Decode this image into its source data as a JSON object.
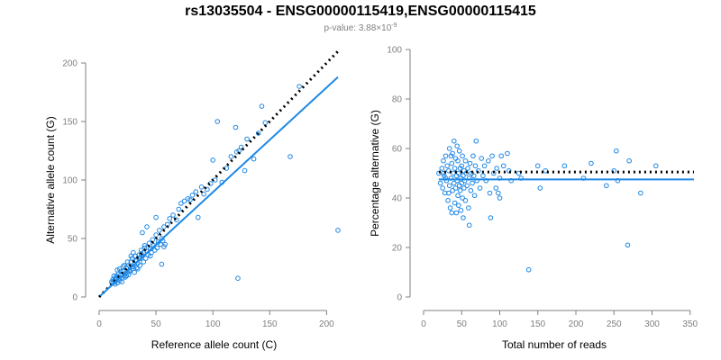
{
  "title": "rs13035504 - ENSG00000115419,ENSG00000115415",
  "subtitle_prefix": "p-value: 3.88×10",
  "subtitle_exp": "-9",
  "colors": {
    "points": "#1e88e5",
    "fit": "#1e88e5",
    "reference": "#000000",
    "axis": "#808080"
  },
  "chart_data": [
    {
      "type": "scatter",
      "title": "",
      "xlabel": "Reference allele count (C)",
      "ylabel": "Alternative allele count (G)",
      "xlim": [
        0,
        210
      ],
      "ylim": [
        0,
        200
      ],
      "xticks": [
        0,
        50,
        100,
        150,
        200
      ],
      "yticks": [
        0,
        50,
        100,
        150,
        200
      ],
      "fit_line": {
        "style": "solid",
        "color": "#1e88e5",
        "from": [
          1,
          1
        ],
        "to": [
          210,
          188
        ]
      },
      "reference_line": {
        "style": "dotted",
        "color": "#000000",
        "from": [
          0,
          0
        ],
        "to": [
          210,
          210
        ]
      },
      "points": [
        [
          12,
          12
        ],
        [
          13,
          14
        ],
        [
          14,
          13
        ],
        [
          15,
          15
        ],
        [
          16,
          12
        ],
        [
          17,
          17
        ],
        [
          18,
          14
        ],
        [
          15,
          18
        ],
        [
          14,
          11
        ],
        [
          19,
          19
        ],
        [
          20,
          16
        ],
        [
          21,
          22
        ],
        [
          22,
          18
        ],
        [
          23,
          20
        ],
        [
          18,
          24
        ],
        [
          24,
          25
        ],
        [
          25,
          21
        ],
        [
          26,
          27
        ],
        [
          27,
          23
        ],
        [
          28,
          30
        ],
        [
          30,
          26
        ],
        [
          29,
          33
        ],
        [
          31,
          28
        ],
        [
          32,
          35
        ],
        [
          33,
          31
        ],
        [
          34,
          29
        ],
        [
          35,
          36
        ],
        [
          36,
          33
        ],
        [
          37,
          40
        ],
        [
          38,
          35
        ],
        [
          39,
          38
        ],
        [
          40,
          42
        ],
        [
          42,
          39
        ],
        [
          44,
          46
        ],
        [
          45,
          41
        ],
        [
          47,
          49
        ],
        [
          48,
          44
        ],
        [
          50,
          53
        ],
        [
          52,
          47
        ],
        [
          53,
          57
        ],
        [
          55,
          50
        ],
        [
          57,
          60
        ],
        [
          60,
          62
        ],
        [
          62,
          67
        ],
        [
          65,
          70
        ],
        [
          68,
          66
        ],
        [
          70,
          75
        ],
        [
          72,
          80
        ],
        [
          75,
          82
        ],
        [
          78,
          84
        ],
        [
          80,
          83
        ],
        [
          82,
          87
        ],
        [
          85,
          90
        ],
        [
          87,
          68
        ],
        [
          90,
          94
        ],
        [
          92,
          88
        ],
        [
          95,
          92
        ],
        [
          98,
          97
        ],
        [
          100,
          117
        ],
        [
          102,
          100
        ],
        [
          104,
          150
        ],
        [
          108,
          98
        ],
        [
          112,
          110
        ],
        [
          116,
          120
        ],
        [
          120,
          145
        ],
        [
          121,
          124
        ],
        [
          123,
          125
        ],
        [
          125,
          128
        ],
        [
          128,
          108
        ],
        [
          130,
          135
        ],
        [
          136,
          118
        ],
        [
          140,
          140
        ],
        [
          143,
          163
        ],
        [
          146,
          149
        ],
        [
          168,
          120
        ],
        [
          176,
          180
        ],
        [
          210,
          57
        ],
        [
          122,
          16
        ],
        [
          55,
          28
        ],
        [
          57,
          43
        ],
        [
          58,
          45
        ],
        [
          50,
          68
        ],
        [
          42,
          60
        ],
        [
          38,
          55
        ],
        [
          45,
          35
        ],
        [
          33,
          25
        ],
        [
          27,
          22
        ],
        [
          22,
          27
        ],
        [
          19,
          22
        ],
        [
          17,
          20
        ],
        [
          16,
          23
        ],
        [
          14,
          16
        ],
        [
          13,
          18
        ],
        [
          12,
          15
        ],
        [
          11,
          13
        ],
        [
          20,
          13
        ],
        [
          23,
          17
        ],
        [
          26,
          19
        ],
        [
          29,
          24
        ],
        [
          31,
          21
        ],
        [
          34,
          24
        ],
        [
          36,
          27
        ],
        [
          39,
          30
        ],
        [
          41,
          33
        ],
        [
          43,
          36
        ],
        [
          46,
          38
        ],
        [
          49,
          40
        ],
        [
          51,
          42
        ],
        [
          54,
          45
        ],
        [
          56,
          48
        ],
        [
          25,
          30
        ],
        [
          28,
          35
        ],
        [
          30,
          38
        ],
        [
          32,
          31
        ],
        [
          35,
          33
        ],
        [
          37,
          37
        ],
        [
          40,
          44
        ],
        [
          24,
          18
        ],
        [
          21,
          26
        ],
        [
          18,
          16
        ]
      ]
    },
    {
      "type": "scatter",
      "title": "",
      "xlabel": "Total number of reads",
      "ylabel": "Percentage alternative (G)",
      "xlim": [
        0,
        355
      ],
      "ylim": [
        0,
        100
      ],
      "xticks": [
        0,
        50,
        100,
        150,
        200,
        250,
        300,
        350
      ],
      "yticks": [
        0,
        20,
        40,
        60,
        80,
        100
      ],
      "fit_line": {
        "style": "solid",
        "color": "#1e88e5",
        "from": [
          20,
          47.5
        ],
        "to": [
          355,
          47.5
        ]
      },
      "reference_line": {
        "style": "dotted",
        "color": "#000000",
        "from": [
          20,
          50.5
        ],
        "to": [
          355,
          50.5
        ]
      },
      "points": [
        [
          20,
          50
        ],
        [
          22,
          46
        ],
        [
          24,
          52
        ],
        [
          25,
          44
        ],
        [
          26,
          55
        ],
        [
          27,
          49
        ],
        [
          28,
          42
        ],
        [
          29,
          57
        ],
        [
          30,
          47
        ],
        [
          31,
          53
        ],
        [
          32,
          39
        ],
        [
          33,
          51
        ],
        [
          34,
          60
        ],
        [
          34,
          45
        ],
        [
          35,
          36
        ],
        [
          36,
          48
        ],
        [
          37,
          54
        ],
        [
          37,
          34
        ],
        [
          38,
          43
        ],
        [
          38,
          58
        ],
        [
          39,
          50
        ],
        [
          40,
          46
        ],
        [
          40,
          63
        ],
        [
          41,
          38
        ],
        [
          41,
          52
        ],
        [
          42,
          44
        ],
        [
          42,
          56
        ],
        [
          43,
          49
        ],
        [
          43,
          34
        ],
        [
          44,
          61
        ],
        [
          44,
          47
        ],
        [
          45,
          41
        ],
        [
          45,
          55
        ],
        [
          46,
          50
        ],
        [
          46,
          37
        ],
        [
          47,
          45
        ],
        [
          47,
          59
        ],
        [
          48,
          52
        ],
        [
          48,
          43
        ],
        [
          49,
          48
        ],
        [
          49,
          35
        ],
        [
          50,
          53
        ],
        [
          50,
          46
        ],
        [
          51,
          40
        ],
        [
          51,
          57
        ],
        [
          52,
          49
        ],
        [
          52,
          32
        ],
        [
          53,
          44
        ],
        [
          53,
          51
        ],
        [
          54,
          47
        ],
        [
          55,
          55
        ],
        [
          55,
          39
        ],
        [
          56,
          50
        ],
        [
          57,
          45
        ],
        [
          58,
          52
        ],
        [
          59,
          36
        ],
        [
          60,
          48
        ],
        [
          60,
          29
        ],
        [
          61,
          54
        ],
        [
          62,
          43
        ],
        [
          63,
          50
        ],
        [
          64,
          46
        ],
        [
          65,
          57
        ],
        [
          66,
          49
        ],
        [
          67,
          41
        ],
        [
          68,
          53
        ],
        [
          69,
          63
        ],
        [
          70,
          47
        ],
        [
          72,
          51
        ],
        [
          74,
          44
        ],
        [
          76,
          56
        ],
        [
          78,
          49
        ],
        [
          80,
          53
        ],
        [
          82,
          47
        ],
        [
          85,
          55
        ],
        [
          87,
          42
        ],
        [
          88,
          32
        ],
        [
          90,
          57
        ],
        [
          92,
          50
        ],
        [
          95,
          44
        ],
        [
          96,
          52
        ],
        [
          98,
          42
        ],
        [
          100,
          48
        ],
        [
          102,
          57
        ],
        [
          105,
          53
        ],
        [
          110,
          58
        ],
        [
          112,
          51
        ],
        [
          115,
          47
        ],
        [
          125,
          50
        ],
        [
          128,
          48
        ],
        [
          138,
          11
        ],
        [
          150,
          53
        ],
        [
          153,
          44
        ],
        [
          160,
          51
        ],
        [
          185,
          53
        ],
        [
          210,
          48
        ],
        [
          220,
          54
        ],
        [
          240,
          45
        ],
        [
          250,
          51
        ],
        [
          253,
          59
        ],
        [
          255,
          47
        ],
        [
          268,
          21
        ],
        [
          270,
          55
        ],
        [
          285,
          42
        ],
        [
          305,
          53
        ],
        [
          100,
          40
        ],
        [
          36,
          57
        ],
        [
          33,
          42
        ],
        [
          29,
          48
        ],
        [
          26,
          50
        ]
      ]
    }
  ]
}
